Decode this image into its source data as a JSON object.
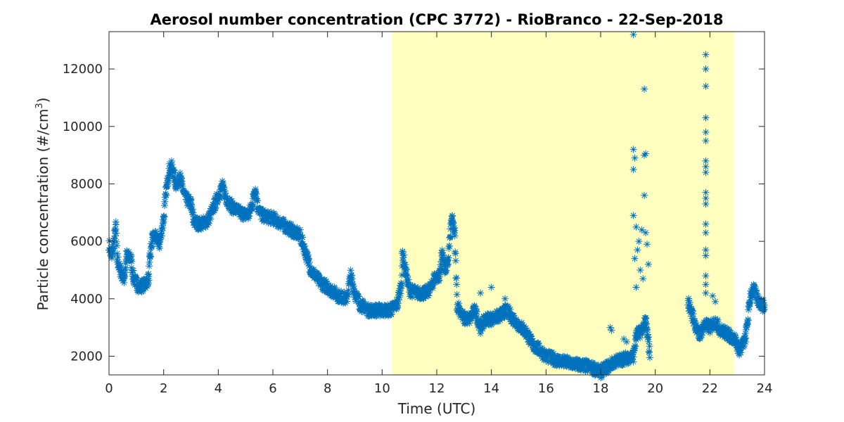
{
  "chart_data": {
    "type": "scatter",
    "title": "Aerosol number concentration (CPC 3772) - RioBranco - 22-Sep-2018",
    "xlabel": "Time (UTC)",
    "ylabel_main": "Particle concentration (#/cm",
    "ylabel_sup": "3",
    "ylabel_end": ")",
    "xlim": [
      0,
      24
    ],
    "ylim": [
      1350,
      13300
    ],
    "xticks": [
      0,
      2,
      4,
      6,
      8,
      10,
      12,
      14,
      16,
      18,
      20,
      22,
      24
    ],
    "yticks": [
      2000,
      4000,
      6000,
      8000,
      10000,
      12000
    ],
    "grid": false,
    "marker": "asterisk",
    "series_color": "#0072BD",
    "highlight": {
      "x_start": 10.35,
      "x_end": 22.9,
      "color": "#FFFFBF"
    },
    "series": [
      {
        "trend": [
          [
            0.0,
            5900
          ],
          [
            0.1,
            5400
          ],
          [
            0.15,
            5800
          ],
          [
            0.25,
            6500
          ],
          [
            0.3,
            5400
          ],
          [
            0.4,
            5000
          ],
          [
            0.55,
            4700
          ],
          [
            0.65,
            5500
          ],
          [
            0.8,
            5400
          ],
          [
            0.9,
            4700
          ],
          [
            1.1,
            4400
          ],
          [
            1.3,
            4500
          ],
          [
            1.45,
            4700
          ],
          [
            1.5,
            5400
          ],
          [
            1.6,
            6200
          ],
          [
            1.75,
            6100
          ],
          [
            1.85,
            5900
          ],
          [
            2.0,
            6800
          ],
          [
            2.1,
            7800
          ],
          [
            2.2,
            8500
          ],
          [
            2.3,
            8600
          ],
          [
            2.45,
            8000
          ],
          [
            2.6,
            8200
          ],
          [
            2.8,
            7500
          ],
          [
            3.0,
            7300
          ],
          [
            3.1,
            6700
          ],
          [
            3.3,
            6600
          ],
          [
            3.6,
            6700
          ],
          [
            3.8,
            7100
          ],
          [
            4.0,
            7600
          ],
          [
            4.15,
            7900
          ],
          [
            4.3,
            7500
          ],
          [
            4.5,
            7200
          ],
          [
            4.8,
            7000
          ],
          [
            5.1,
            6900
          ],
          [
            5.25,
            7300
          ],
          [
            5.35,
            7900
          ],
          [
            5.45,
            7200
          ],
          [
            5.6,
            6900
          ],
          [
            6.0,
            6800
          ],
          [
            6.5,
            6500
          ],
          [
            7.0,
            6200
          ],
          [
            7.2,
            5600
          ],
          [
            7.4,
            5000
          ],
          [
            7.7,
            4600
          ],
          [
            8.0,
            4400
          ],
          [
            8.4,
            4100
          ],
          [
            8.7,
            4000
          ],
          [
            8.85,
            4800
          ],
          [
            9.0,
            4200
          ],
          [
            9.2,
            3800
          ],
          [
            9.5,
            3600
          ],
          [
            9.8,
            3600
          ],
          [
            10.0,
            3600
          ],
          [
            10.3,
            3600
          ],
          [
            10.55,
            3800
          ],
          [
            10.7,
            4500
          ],
          [
            10.75,
            5600
          ],
          [
            10.85,
            5000
          ],
          [
            11.0,
            4300
          ],
          [
            11.3,
            4200
          ],
          [
            11.6,
            4200
          ],
          [
            11.8,
            4400
          ],
          [
            11.9,
            4700
          ],
          [
            12.1,
            4800
          ],
          [
            12.2,
            5600
          ],
          [
            12.3,
            5000
          ],
          [
            12.4,
            5200
          ],
          [
            12.55,
            6800
          ],
          [
            12.65,
            6300
          ],
          [
            12.75,
            3800
          ],
          [
            13.0,
            3300
          ],
          [
            13.2,
            3300
          ],
          [
            13.4,
            3600
          ],
          [
            13.6,
            3000
          ],
          [
            13.8,
            3300
          ],
          [
            14.0,
            3300
          ],
          [
            14.3,
            3400
          ],
          [
            14.55,
            3600
          ],
          [
            14.8,
            3300
          ],
          [
            15.0,
            3100
          ],
          [
            15.3,
            2800
          ],
          [
            15.5,
            2400
          ],
          [
            15.8,
            2200
          ],
          [
            16.0,
            2000
          ],
          [
            16.3,
            1900
          ],
          [
            16.6,
            1800
          ],
          [
            16.9,
            1750
          ],
          [
            17.2,
            1700
          ],
          [
            17.5,
            1650
          ],
          [
            17.8,
            1550
          ],
          [
            18.0,
            1450
          ],
          [
            18.2,
            1600
          ],
          [
            18.5,
            1800
          ],
          [
            18.8,
            1900
          ],
          [
            19.0,
            1950
          ],
          [
            19.2,
            2000
          ],
          [
            19.3,
            2700
          ],
          [
            19.5,
            2900
          ],
          [
            19.65,
            3200
          ],
          [
            19.8,
            2100
          ]
        ],
        "trend2": [
          [
            21.2,
            3900
          ],
          [
            21.4,
            3300
          ],
          [
            21.6,
            2700
          ],
          [
            21.8,
            3100
          ],
          [
            22.0,
            3000
          ],
          [
            22.2,
            3200
          ],
          [
            22.4,
            2900
          ],
          [
            22.6,
            2800
          ],
          [
            22.9,
            2600
          ],
          [
            23.1,
            2200
          ],
          [
            23.3,
            2600
          ],
          [
            23.5,
            4200
          ],
          [
            23.6,
            4300
          ],
          [
            23.8,
            3900
          ],
          [
            24.0,
            3700
          ]
        ],
        "outliers": [
          [
            19.2,
            13200
          ],
          [
            19.2,
            9200
          ],
          [
            19.25,
            8900
          ],
          [
            19.2,
            8500
          ],
          [
            19.6,
            11300
          ],
          [
            19.6,
            9000
          ],
          [
            19.65,
            9050
          ],
          [
            19.6,
            7600
          ],
          [
            19.2,
            6900
          ],
          [
            19.3,
            6500
          ],
          [
            19.5,
            6400
          ],
          [
            19.4,
            6000
          ],
          [
            19.35,
            5700
          ],
          [
            19.25,
            5400
          ],
          [
            19.45,
            5000
          ],
          [
            19.55,
            4700
          ],
          [
            19.3,
            4400
          ],
          [
            19.65,
            6300
          ],
          [
            19.7,
            5900
          ],
          [
            19.75,
            5200
          ],
          [
            18.35,
            3000
          ],
          [
            18.4,
            2900
          ],
          [
            18.85,
            2600
          ],
          [
            18.95,
            2500
          ],
          [
            21.85,
            12500
          ],
          [
            21.85,
            12000
          ],
          [
            21.85,
            11400
          ],
          [
            21.85,
            10300
          ],
          [
            21.85,
            9800
          ],
          [
            21.85,
            9500
          ],
          [
            21.85,
            8800
          ],
          [
            21.85,
            8600
          ],
          [
            21.85,
            8400
          ],
          [
            21.85,
            7700
          ],
          [
            21.85,
            7500
          ],
          [
            21.85,
            7300
          ],
          [
            21.85,
            6600
          ],
          [
            21.85,
            6300
          ],
          [
            21.85,
            5700
          ],
          [
            21.85,
            5500
          ],
          [
            21.85,
            4800
          ],
          [
            21.85,
            4500
          ],
          [
            21.85,
            4200
          ],
          [
            22.1,
            4100
          ],
          [
            22.2,
            3900
          ],
          [
            14.0,
            4400
          ],
          [
            13.6,
            4200
          ],
          [
            14.5,
            4000
          ]
        ]
      }
    ]
  }
}
